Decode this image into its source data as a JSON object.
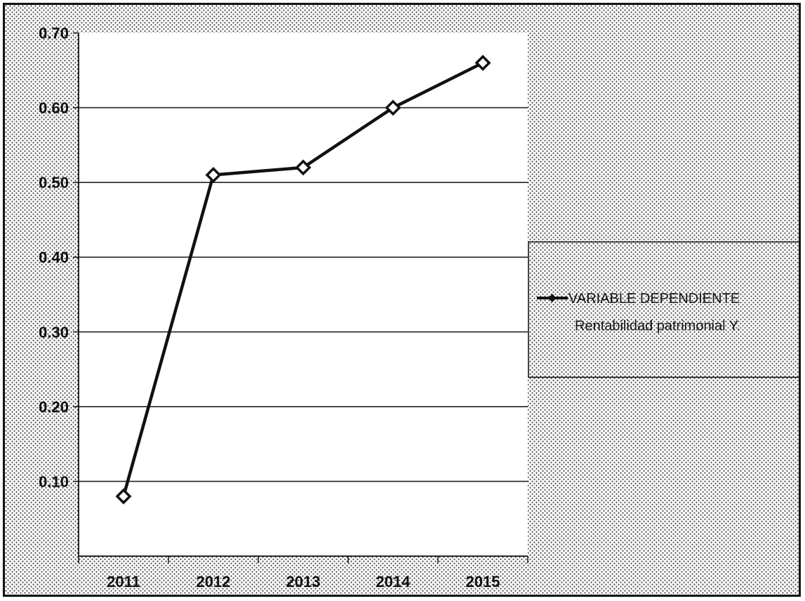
{
  "chart_data": {
    "type": "line",
    "x": [
      "2011",
      "2012",
      "2013",
      "2014",
      "2015"
    ],
    "series": [
      {
        "name": "VARIABLE DEPENDIENTE Rentabilidad patrimonial Y.",
        "legend_line1": "VARIABLE DEPENDIENTE",
        "legend_line2": "Rentabilidad patrimonial Y.",
        "values": [
          0.08,
          0.51,
          0.52,
          0.6,
          0.66
        ],
        "color": "#111111",
        "marker": "diamond"
      }
    ],
    "y_ticks": [
      "0.10",
      "0.20",
      "0.30",
      "0.40",
      "0.50",
      "0.60",
      "0.70"
    ],
    "ylim": [
      0.0,
      0.7
    ],
    "grid": true,
    "legend_position": "right",
    "title": "",
    "xlabel": "",
    "ylabel": ""
  },
  "colors": {
    "plot_background": "#ffffff",
    "page_background": "#dcdcdc",
    "ink": "#111111"
  }
}
